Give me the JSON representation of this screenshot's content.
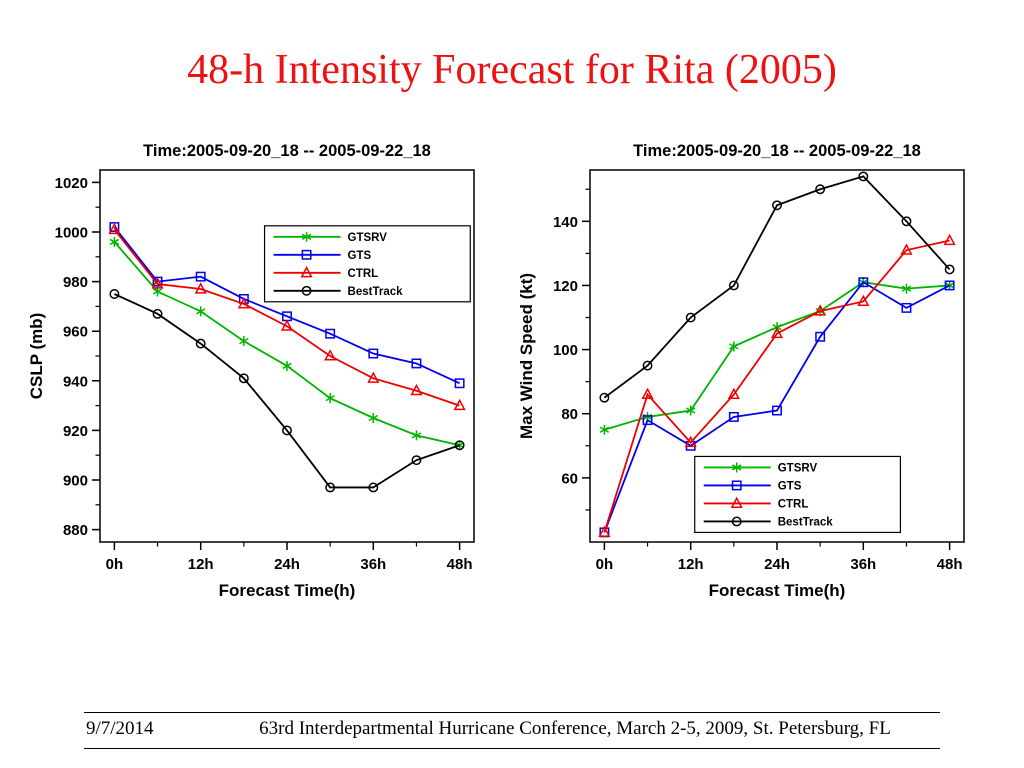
{
  "slide": {
    "title": "48-h Intensity Forecast for Rita (2005)",
    "footer": {
      "date": "9/7/2014",
      "text": "63rd Interdepartmental Hurricane Conference, March 2-5, 2009, St. Petersburg, FL"
    }
  },
  "colors": {
    "title_red": "#ee1111",
    "gtsrv_green": "#00b400",
    "gts_blue": "#0000ee",
    "ctrl_red": "#ee0000",
    "besttrack_black": "#000000"
  },
  "chart_data": [
    {
      "id": "cslp",
      "type": "line",
      "title": "Time:2005-09-20_18 -- 2005-09-22_18",
      "xlabel": "Forecast Time(h)",
      "ylabel": "CSLP (mb)",
      "x": [
        0,
        6,
        12,
        18,
        24,
        30,
        36,
        42,
        48
      ],
      "x_tick_values": [
        0,
        12,
        24,
        36,
        48
      ],
      "x_tick_labels": [
        "0h",
        "12h",
        "24h",
        "36h",
        "48h"
      ],
      "xlim": [
        -2,
        50
      ],
      "ylim": [
        875,
        1025
      ],
      "y_ticks": [
        880,
        900,
        920,
        940,
        960,
        980,
        1000,
        1020
      ],
      "legend_position": "upper-right",
      "series": [
        {
          "name": "GTSRV",
          "color": "#00b400",
          "marker": "star",
          "values": [
            996,
            976,
            968,
            956,
            946,
            933,
            925,
            918,
            914
          ]
        },
        {
          "name": "GTS",
          "color": "#0000ee",
          "marker": "square",
          "values": [
            1002,
            980,
            982,
            973,
            966,
            959,
            951,
            947,
            939
          ]
        },
        {
          "name": "CTRL",
          "color": "#ee0000",
          "marker": "triangle",
          "values": [
            1001,
            979,
            977,
            971,
            962,
            950,
            941,
            936,
            930
          ]
        },
        {
          "name": "BestTrack",
          "color": "#000000",
          "marker": "circle",
          "values": [
            975,
            967,
            955,
            941,
            920,
            897,
            897,
            908,
            914
          ]
        }
      ]
    },
    {
      "id": "max-wind",
      "type": "line",
      "title": "Time:2005-09-20_18 -- 2005-09-22_18",
      "xlabel": "Forecast Time(h)",
      "ylabel": "Max Wind Speed (kt)",
      "x": [
        0,
        6,
        12,
        18,
        24,
        30,
        36,
        42,
        48
      ],
      "x_tick_values": [
        0,
        12,
        24,
        36,
        48
      ],
      "x_tick_labels": [
        "0h",
        "12h",
        "24h",
        "36h",
        "48h"
      ],
      "xlim": [
        -2,
        50
      ],
      "ylim": [
        40,
        156
      ],
      "y_ticks": [
        60,
        80,
        100,
        120,
        140
      ],
      "legend_position": "lower-right",
      "series": [
        {
          "name": "GTSRV",
          "color": "#00b400",
          "marker": "star",
          "values": [
            75,
            79,
            81,
            101,
            107,
            112,
            121,
            119,
            120
          ]
        },
        {
          "name": "GTS",
          "color": "#0000ee",
          "marker": "square",
          "values": [
            43,
            78,
            70,
            79,
            81,
            104,
            121,
            113,
            120
          ]
        },
        {
          "name": "CTRL",
          "color": "#ee0000",
          "marker": "triangle",
          "values": [
            43,
            86,
            71,
            86,
            105,
            112,
            115,
            131,
            134
          ]
        },
        {
          "name": "BestTrack",
          "color": "#000000",
          "marker": "circle",
          "values": [
            85,
            95,
            110,
            120,
            145,
            150,
            154,
            140,
            125
          ]
        }
      ]
    }
  ]
}
